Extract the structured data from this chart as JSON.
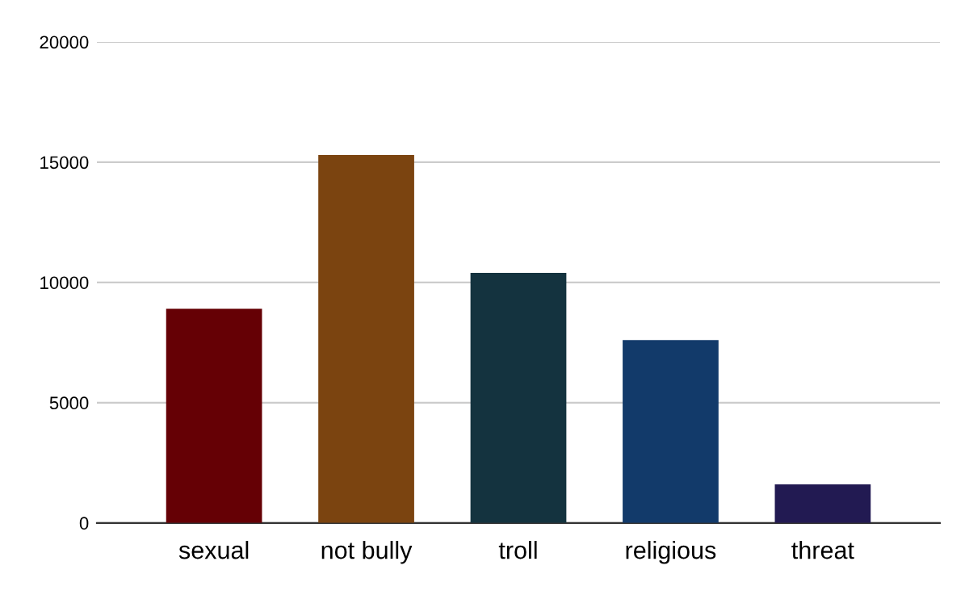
{
  "chart_data": {
    "type": "bar",
    "categories": [
      "sexual",
      "not bully",
      "troll",
      "religious",
      "threat"
    ],
    "values": [
      8900,
      15300,
      10400,
      7600,
      1600
    ],
    "colors": [
      "#650005",
      "#7b4410",
      "#14333f",
      "#123a6a",
      "#221a52"
    ],
    "ylim": [
      0,
      20000
    ],
    "yticks": [
      0,
      5000,
      10000,
      15000,
      20000
    ],
    "grid": "y",
    "legend": false
  }
}
